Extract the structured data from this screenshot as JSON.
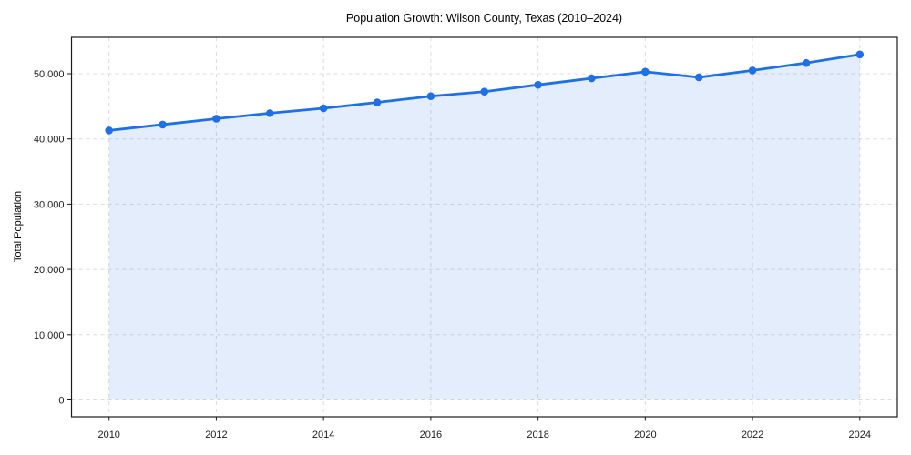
{
  "chart_data": {
    "type": "area",
    "title": "Population Growth: Wilson County, Texas (2010–2024)",
    "xlabel": "",
    "ylabel": "Total Population",
    "x": [
      2010,
      2011,
      2012,
      2013,
      2014,
      2015,
      2016,
      2017,
      2018,
      2019,
      2020,
      2021,
      2022,
      2023,
      2024
    ],
    "values": [
      41300,
      42200,
      43100,
      43950,
      44700,
      45600,
      46550,
      47250,
      48300,
      49300,
      50300,
      49450,
      50500,
      51650,
      52950
    ],
    "series_name": "Total Population",
    "x_ticks": [
      2010,
      2012,
      2014,
      2016,
      2018,
      2020,
      2022,
      2024
    ],
    "x_tick_labels": [
      "2010",
      "2012",
      "2014",
      "2016",
      "2018",
      "2020",
      "2022",
      "2024"
    ],
    "y_ticks": [
      0,
      10000,
      20000,
      30000,
      40000,
      50000
    ],
    "y_tick_labels": [
      "0",
      "10,000",
      "20,000",
      "30,000",
      "40,000",
      "50,000"
    ],
    "xlim": [
      2009.3,
      2024.7
    ],
    "ylim": [
      -2580,
      55578
    ],
    "grid": true,
    "grid_style": "dashed",
    "legend": "none",
    "baseline_value": 0,
    "colors": {
      "line": "#1f6fe6",
      "marker": "#1f6fe6",
      "fill_rgba": "rgba(31, 111, 230, 0.12)",
      "grid": "#dcdcdc",
      "spine": "#1a1a1a",
      "text": "#000000"
    }
  }
}
